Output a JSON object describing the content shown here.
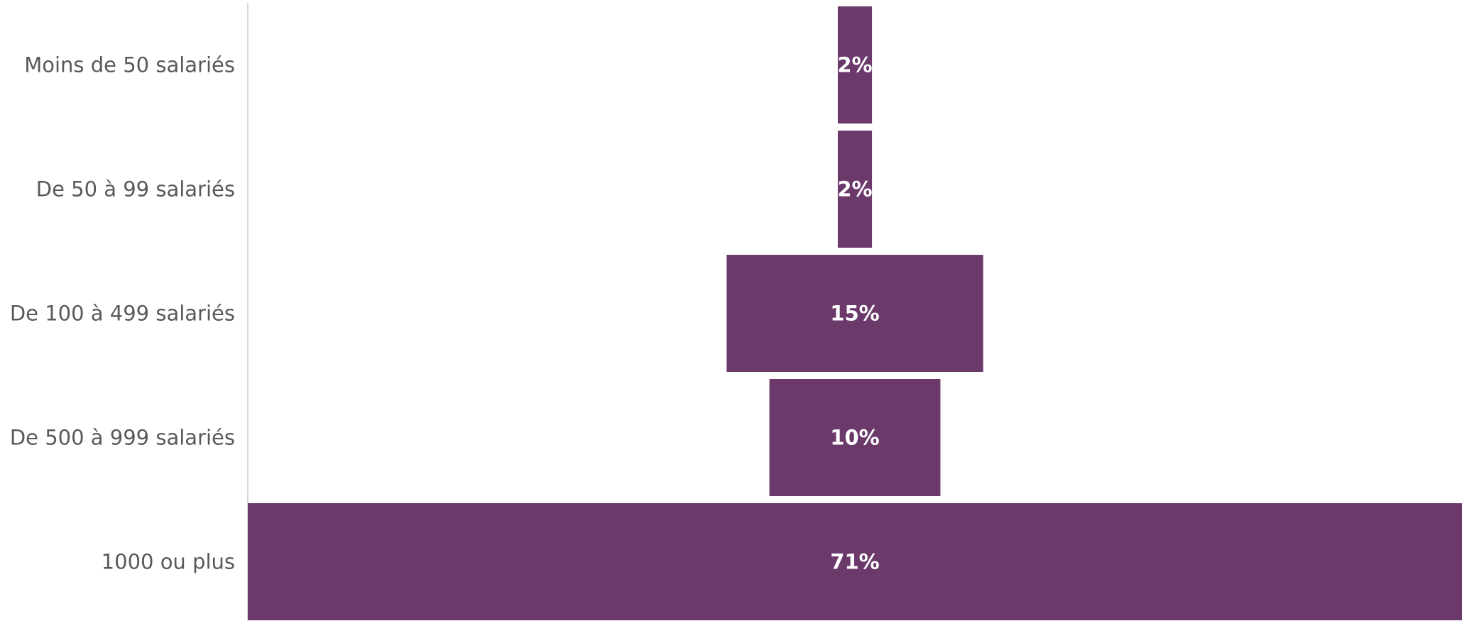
{
  "chart_data": {
    "type": "bar",
    "orientation": "horizontal",
    "centered": true,
    "categories": [
      "Moins de 50 salariés",
      "De 50 à 99 salariés",
      "De 100 à 499 salariés",
      "De 500 à 999 salariés",
      "1000 ou plus"
    ],
    "values": [
      2,
      2,
      15,
      10,
      71
    ],
    "value_labels": [
      "2%",
      "2%",
      "15%",
      "10%",
      "71%"
    ],
    "unit": "%",
    "xlim": [
      0,
      71
    ],
    "grid": false,
    "legend": "none",
    "colors": {
      "bar": "#6b3a6b",
      "category_text": "#595959",
      "value_text": "#ffffff",
      "axis": "#d9d9d9"
    }
  }
}
